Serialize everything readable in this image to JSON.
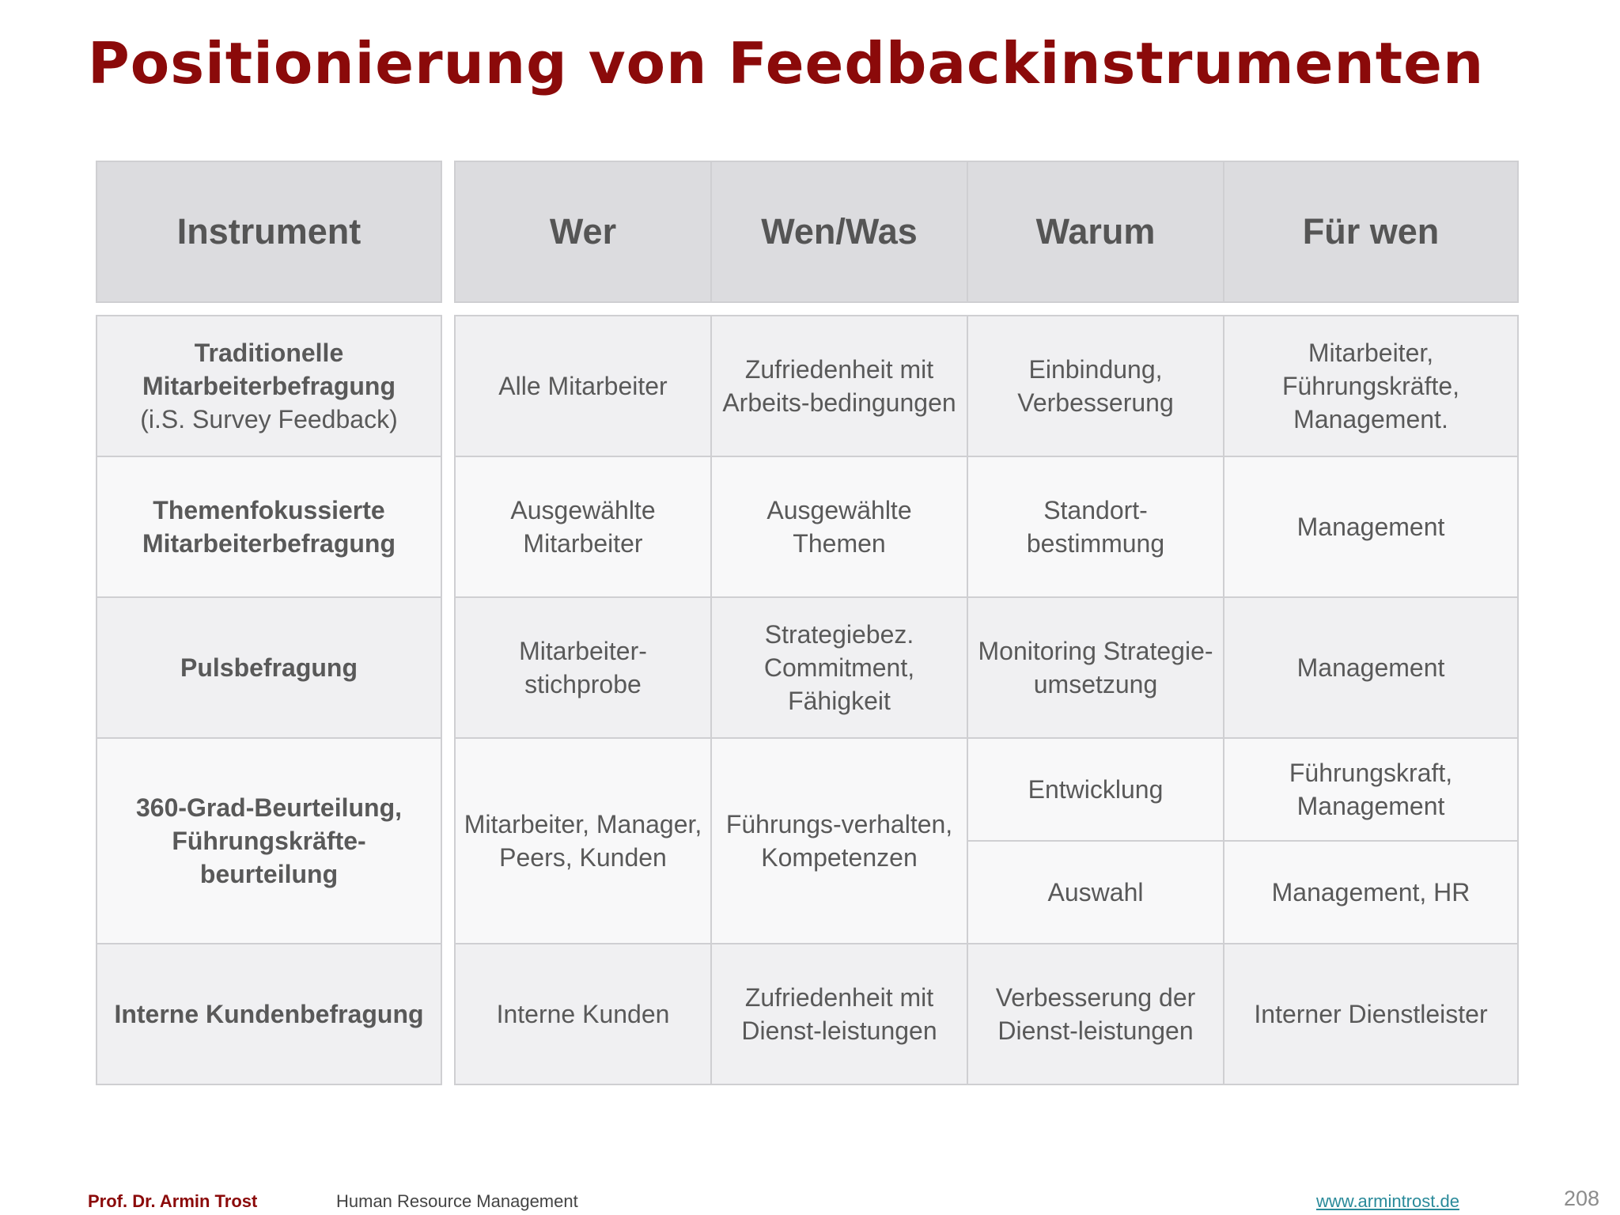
{
  "title": "Positionierung von Feedbackinstrumenten",
  "headers": {
    "instrument": "Instrument",
    "wer": "Wer",
    "wen_was": "Wen/Was",
    "warum": "Warum",
    "fuer_wen": "Für wen"
  },
  "rows": [
    {
      "instrument": "Traditionelle Mitarbeiterbefragung",
      "instrument_sub": "(i.S. Survey Feedback)",
      "wer": "Alle Mitarbeiter",
      "wen_was": "Zufriedenheit mit Arbeits-bedingungen",
      "warum": "Einbindung, Verbesserung",
      "fuer_wen": "Mitarbeiter, Führungskräfte, Management."
    },
    {
      "instrument": "Themenfokussierte Mitarbeiterbefragung",
      "wer": "Ausgewählte Mitarbeiter",
      "wen_was": "Ausgewählte Themen",
      "warum": "Standort-bestimmung",
      "fuer_wen": "Management"
    },
    {
      "instrument": "Pulsbefragung",
      "wer": "Mitarbeiter-stichprobe",
      "wen_was": "Strategiebez. Commitment, Fähigkeit",
      "warum": "Monitoring Strategie-umsetzung",
      "fuer_wen": "Management"
    },
    {
      "instrument": "360-Grad-Beurteilung, Führungskräfte-beurteilung",
      "wer": "Mitarbeiter, Manager, Peers, Kunden",
      "wen_was": "Führungs-verhalten, Kompetenzen",
      "warum_1": "Entwicklung",
      "fuer_wen_1": "Führungskraft, Management",
      "warum_2": "Auswahl",
      "fuer_wen_2": "Management, HR"
    },
    {
      "instrument": "Interne Kundenbefragung",
      "wer": "Interne Kunden",
      "wen_was": "Zufriedenheit mit  Dienst-leistungen",
      "warum": "Verbesserung der Dienst-leistungen",
      "fuer_wen": "Interner Dienstleister"
    }
  ],
  "footer": {
    "author": "Prof. Dr. Armin Trost",
    "course": "Human Resource Management",
    "website": "www.armintrost.de",
    "page": "208"
  }
}
